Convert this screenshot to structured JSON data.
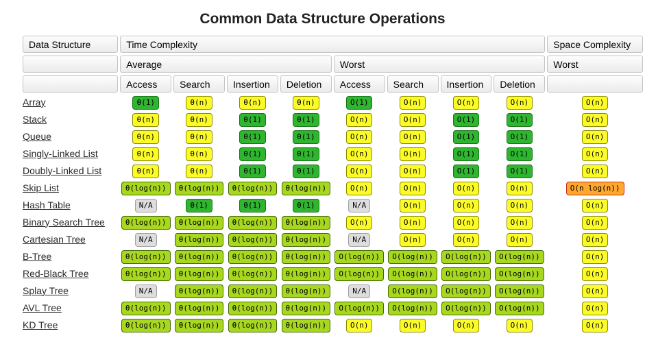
{
  "title": "Common Data Structure Operations",
  "colors": {
    "green": "#2fb52f",
    "green_border": "#157615",
    "yellow": "#fbfb28",
    "yellow_border": "#8a8a00",
    "yellowgreen": "#a8d720",
    "yellowgreen_border": "#3f6b00",
    "orange": "#ffa82e",
    "orange_border": "#c42b1c",
    "gray": "#dddddd",
    "gray_border": "#a0a0a0"
  },
  "header": {
    "data_structure": "Data Structure",
    "time_complexity": "Time Complexity",
    "space_complexity": "Space Complexity",
    "average": "Average",
    "worst": "Worst",
    "space_worst": "Worst",
    "ops": [
      "Access",
      "Search",
      "Insertion",
      "Deletion",
      "Access",
      "Search",
      "Insertion",
      "Deletion"
    ]
  },
  "rows": [
    {
      "name": "Array",
      "cells": [
        {
          "t": "θ(1)",
          "c": "green"
        },
        {
          "t": "θ(n)",
          "c": "yellow"
        },
        {
          "t": "θ(n)",
          "c": "yellow"
        },
        {
          "t": "θ(n)",
          "c": "yellow"
        },
        {
          "t": "O(1)",
          "c": "green"
        },
        {
          "t": "O(n)",
          "c": "yellow"
        },
        {
          "t": "O(n)",
          "c": "yellow"
        },
        {
          "t": "O(n)",
          "c": "yellow"
        },
        {
          "t": "O(n)",
          "c": "yellow"
        }
      ]
    },
    {
      "name": "Stack",
      "cells": [
        {
          "t": "θ(n)",
          "c": "yellow"
        },
        {
          "t": "θ(n)",
          "c": "yellow"
        },
        {
          "t": "θ(1)",
          "c": "green"
        },
        {
          "t": "θ(1)",
          "c": "green"
        },
        {
          "t": "O(n)",
          "c": "yellow"
        },
        {
          "t": "O(n)",
          "c": "yellow"
        },
        {
          "t": "O(1)",
          "c": "green"
        },
        {
          "t": "O(1)",
          "c": "green"
        },
        {
          "t": "O(n)",
          "c": "yellow"
        }
      ]
    },
    {
      "name": "Queue",
      "cells": [
        {
          "t": "θ(n)",
          "c": "yellow"
        },
        {
          "t": "θ(n)",
          "c": "yellow"
        },
        {
          "t": "θ(1)",
          "c": "green"
        },
        {
          "t": "θ(1)",
          "c": "green"
        },
        {
          "t": "O(n)",
          "c": "yellow"
        },
        {
          "t": "O(n)",
          "c": "yellow"
        },
        {
          "t": "O(1)",
          "c": "green"
        },
        {
          "t": "O(1)",
          "c": "green"
        },
        {
          "t": "O(n)",
          "c": "yellow"
        }
      ]
    },
    {
      "name": "Singly-Linked List",
      "cells": [
        {
          "t": "θ(n)",
          "c": "yellow"
        },
        {
          "t": "θ(n)",
          "c": "yellow"
        },
        {
          "t": "θ(1)",
          "c": "green"
        },
        {
          "t": "θ(1)",
          "c": "green"
        },
        {
          "t": "O(n)",
          "c": "yellow"
        },
        {
          "t": "O(n)",
          "c": "yellow"
        },
        {
          "t": "O(1)",
          "c": "green"
        },
        {
          "t": "O(1)",
          "c": "green"
        },
        {
          "t": "O(n)",
          "c": "yellow"
        }
      ]
    },
    {
      "name": "Doubly-Linked List",
      "cells": [
        {
          "t": "θ(n)",
          "c": "yellow"
        },
        {
          "t": "θ(n)",
          "c": "yellow"
        },
        {
          "t": "θ(1)",
          "c": "green"
        },
        {
          "t": "θ(1)",
          "c": "green"
        },
        {
          "t": "O(n)",
          "c": "yellow"
        },
        {
          "t": "O(n)",
          "c": "yellow"
        },
        {
          "t": "O(1)",
          "c": "green"
        },
        {
          "t": "O(1)",
          "c": "green"
        },
        {
          "t": "O(n)",
          "c": "yellow"
        }
      ]
    },
    {
      "name": "Skip List",
      "cells": [
        {
          "t": "θ(log(n))",
          "c": "yellowgreen"
        },
        {
          "t": "θ(log(n))",
          "c": "yellowgreen"
        },
        {
          "t": "θ(log(n))",
          "c": "yellowgreen"
        },
        {
          "t": "θ(log(n))",
          "c": "yellowgreen"
        },
        {
          "t": "O(n)",
          "c": "yellow"
        },
        {
          "t": "O(n)",
          "c": "yellow"
        },
        {
          "t": "O(n)",
          "c": "yellow"
        },
        {
          "t": "O(n)",
          "c": "yellow"
        },
        {
          "t": "O(n log(n))",
          "c": "orange"
        }
      ]
    },
    {
      "name": "Hash Table",
      "cells": [
        {
          "t": "N/A",
          "c": "gray"
        },
        {
          "t": "θ(1)",
          "c": "green"
        },
        {
          "t": "θ(1)",
          "c": "green"
        },
        {
          "t": "θ(1)",
          "c": "green"
        },
        {
          "t": "N/A",
          "c": "gray"
        },
        {
          "t": "O(n)",
          "c": "yellow"
        },
        {
          "t": "O(n)",
          "c": "yellow"
        },
        {
          "t": "O(n)",
          "c": "yellow"
        },
        {
          "t": "O(n)",
          "c": "yellow"
        }
      ]
    },
    {
      "name": "Binary Search Tree",
      "cells": [
        {
          "t": "θ(log(n))",
          "c": "yellowgreen"
        },
        {
          "t": "θ(log(n))",
          "c": "yellowgreen"
        },
        {
          "t": "θ(log(n))",
          "c": "yellowgreen"
        },
        {
          "t": "θ(log(n))",
          "c": "yellowgreen"
        },
        {
          "t": "O(n)",
          "c": "yellow"
        },
        {
          "t": "O(n)",
          "c": "yellow"
        },
        {
          "t": "O(n)",
          "c": "yellow"
        },
        {
          "t": "O(n)",
          "c": "yellow"
        },
        {
          "t": "O(n)",
          "c": "yellow"
        }
      ]
    },
    {
      "name": "Cartesian Tree",
      "cells": [
        {
          "t": "N/A",
          "c": "gray"
        },
        {
          "t": "θ(log(n))",
          "c": "yellowgreen"
        },
        {
          "t": "θ(log(n))",
          "c": "yellowgreen"
        },
        {
          "t": "θ(log(n))",
          "c": "yellowgreen"
        },
        {
          "t": "N/A",
          "c": "gray"
        },
        {
          "t": "O(n)",
          "c": "yellow"
        },
        {
          "t": "O(n)",
          "c": "yellow"
        },
        {
          "t": "O(n)",
          "c": "yellow"
        },
        {
          "t": "O(n)",
          "c": "yellow"
        }
      ]
    },
    {
      "name": "B-Tree",
      "cells": [
        {
          "t": "θ(log(n))",
          "c": "yellowgreen"
        },
        {
          "t": "θ(log(n))",
          "c": "yellowgreen"
        },
        {
          "t": "θ(log(n))",
          "c": "yellowgreen"
        },
        {
          "t": "θ(log(n))",
          "c": "yellowgreen"
        },
        {
          "t": "O(log(n))",
          "c": "yellowgreen"
        },
        {
          "t": "O(log(n))",
          "c": "yellowgreen"
        },
        {
          "t": "O(log(n))",
          "c": "yellowgreen"
        },
        {
          "t": "O(log(n))",
          "c": "yellowgreen"
        },
        {
          "t": "O(n)",
          "c": "yellow"
        }
      ]
    },
    {
      "name": "Red-Black Tree",
      "cells": [
        {
          "t": "θ(log(n))",
          "c": "yellowgreen"
        },
        {
          "t": "θ(log(n))",
          "c": "yellowgreen"
        },
        {
          "t": "θ(log(n))",
          "c": "yellowgreen"
        },
        {
          "t": "θ(log(n))",
          "c": "yellowgreen"
        },
        {
          "t": "O(log(n))",
          "c": "yellowgreen"
        },
        {
          "t": "O(log(n))",
          "c": "yellowgreen"
        },
        {
          "t": "O(log(n))",
          "c": "yellowgreen"
        },
        {
          "t": "O(log(n))",
          "c": "yellowgreen"
        },
        {
          "t": "O(n)",
          "c": "yellow"
        }
      ]
    },
    {
      "name": "Splay Tree",
      "cells": [
        {
          "t": "N/A",
          "c": "gray"
        },
        {
          "t": "θ(log(n))",
          "c": "yellowgreen"
        },
        {
          "t": "θ(log(n))",
          "c": "yellowgreen"
        },
        {
          "t": "θ(log(n))",
          "c": "yellowgreen"
        },
        {
          "t": "N/A",
          "c": "gray"
        },
        {
          "t": "O(log(n))",
          "c": "yellowgreen"
        },
        {
          "t": "O(log(n))",
          "c": "yellowgreen"
        },
        {
          "t": "O(log(n))",
          "c": "yellowgreen"
        },
        {
          "t": "O(n)",
          "c": "yellow"
        }
      ]
    },
    {
      "name": "AVL Tree",
      "cells": [
        {
          "t": "θ(log(n))",
          "c": "yellowgreen"
        },
        {
          "t": "θ(log(n))",
          "c": "yellowgreen"
        },
        {
          "t": "θ(log(n))",
          "c": "yellowgreen"
        },
        {
          "t": "θ(log(n))",
          "c": "yellowgreen"
        },
        {
          "t": "O(log(n))",
          "c": "yellowgreen"
        },
        {
          "t": "O(log(n))",
          "c": "yellowgreen"
        },
        {
          "t": "O(log(n))",
          "c": "yellowgreen"
        },
        {
          "t": "O(log(n))",
          "c": "yellowgreen"
        },
        {
          "t": "O(n)",
          "c": "yellow"
        }
      ]
    },
    {
      "name": "KD Tree",
      "cells": [
        {
          "t": "θ(log(n))",
          "c": "yellowgreen"
        },
        {
          "t": "θ(log(n))",
          "c": "yellowgreen"
        },
        {
          "t": "θ(log(n))",
          "c": "yellowgreen"
        },
        {
          "t": "θ(log(n))",
          "c": "yellowgreen"
        },
        {
          "t": "O(n)",
          "c": "yellow"
        },
        {
          "t": "O(n)",
          "c": "yellow"
        },
        {
          "t": "O(n)",
          "c": "yellow"
        },
        {
          "t": "O(n)",
          "c": "yellow"
        },
        {
          "t": "O(n)",
          "c": "yellow"
        }
      ]
    }
  ]
}
